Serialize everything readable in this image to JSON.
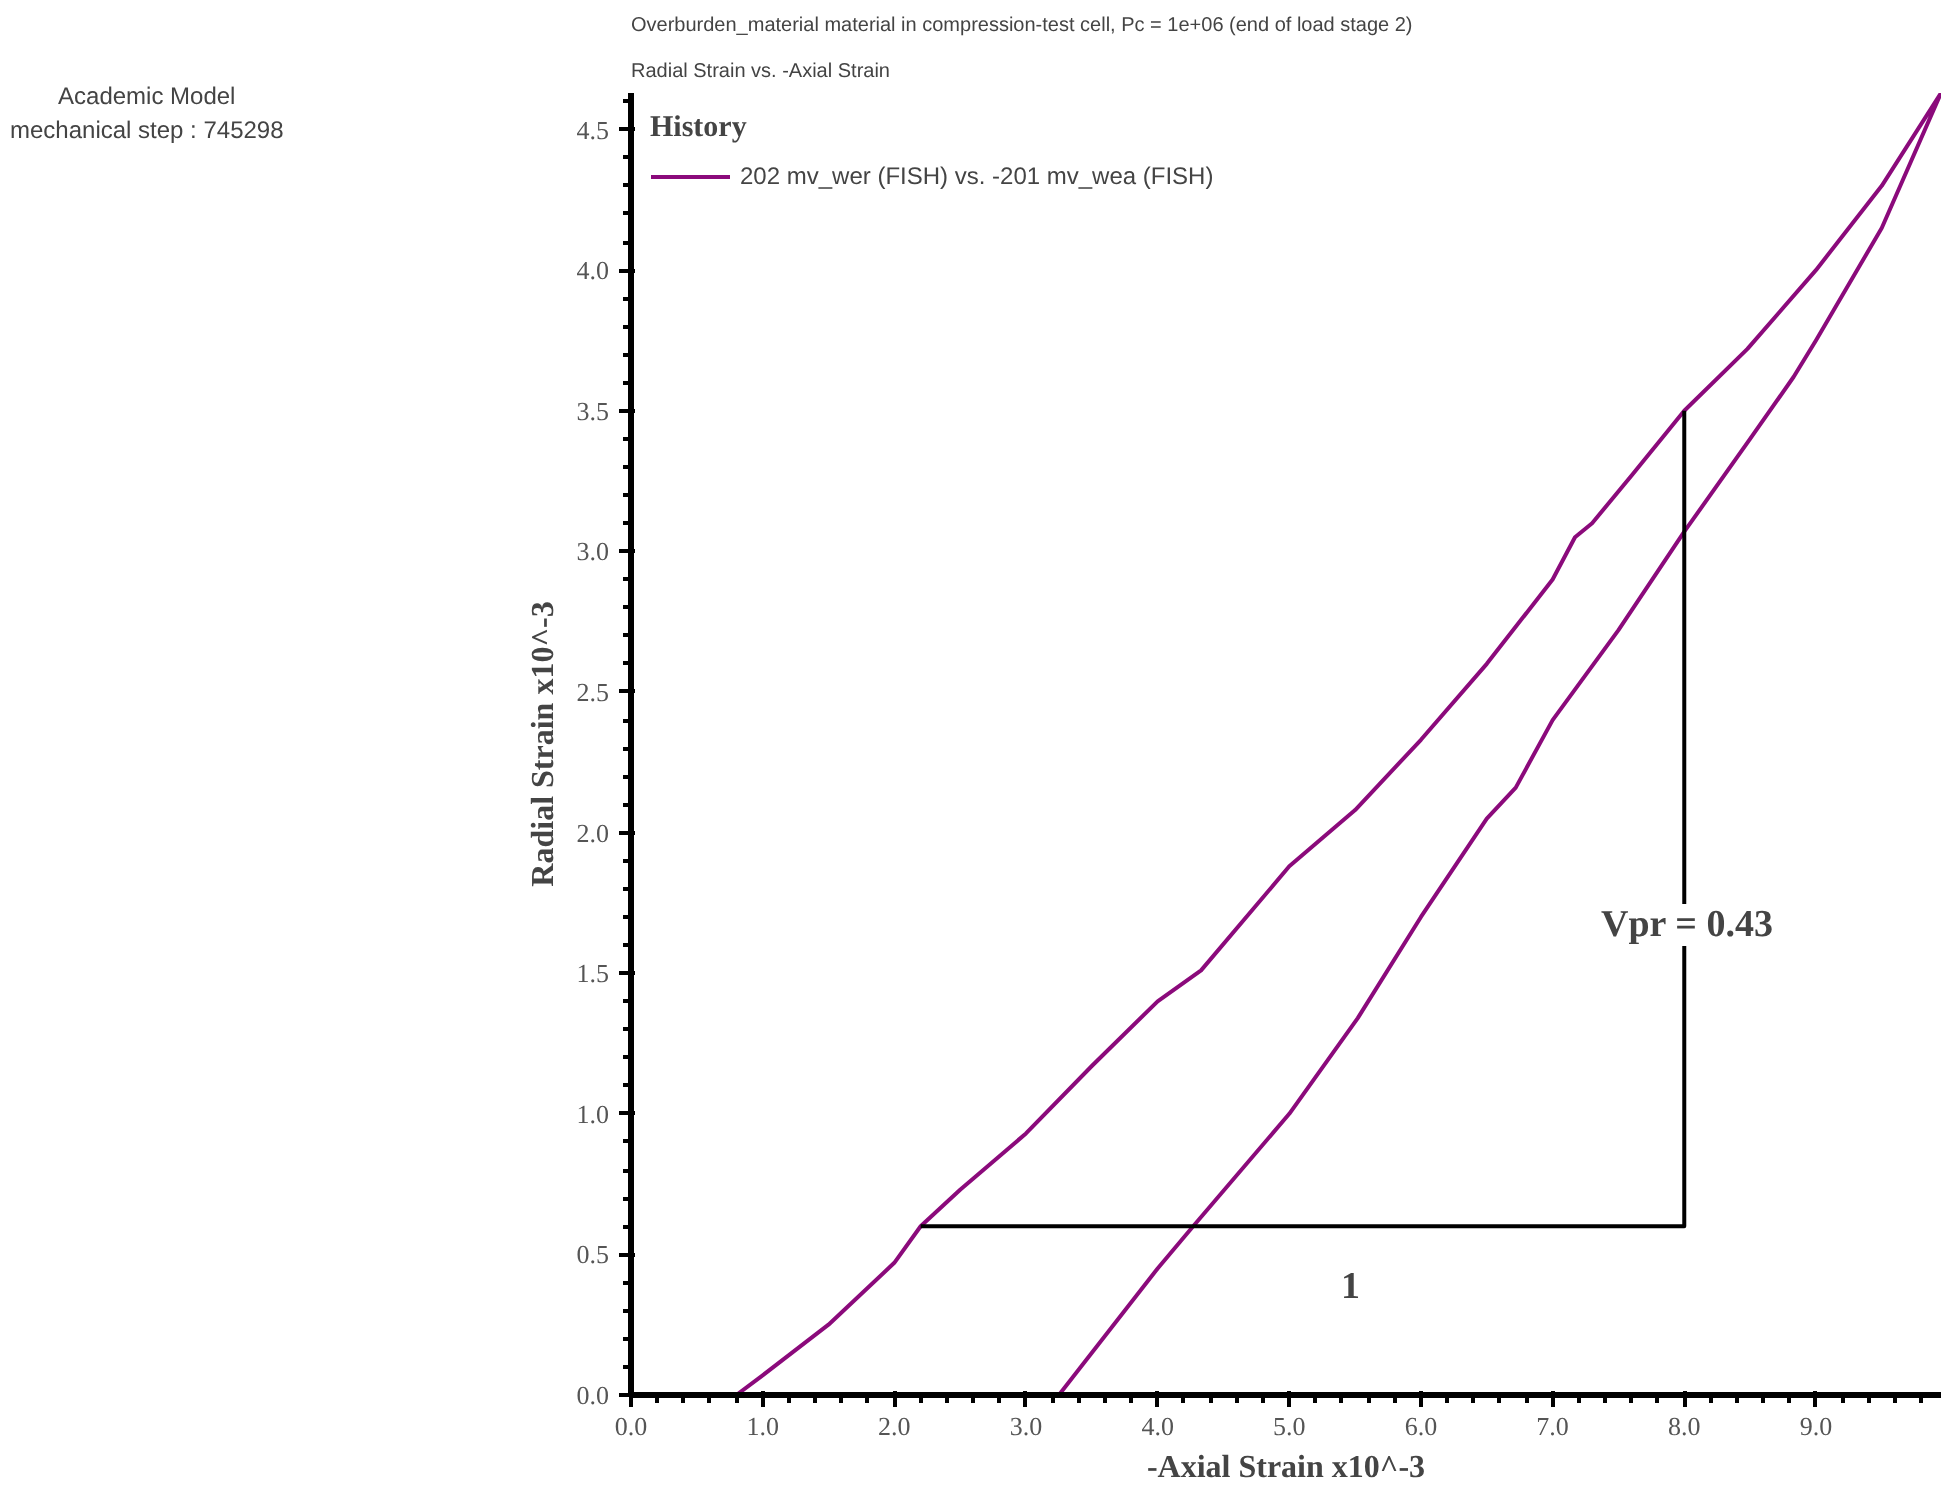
{
  "chart_data": {
    "type": "line",
    "title": "Overburden_material material in compression-test cell, Pc = 1e+06 (end of load stage 2)",
    "subtitle": "Radial Strain vs. -Axial Strain",
    "xlabel": "-Axial Strain x10^-3",
    "ylabel": "Radial Strain x10^-3",
    "legend_title": "History",
    "legend": "left",
    "xlim": [
      0,
      9.95
    ],
    "ylim": [
      0,
      4.63
    ],
    "xticks": [
      {
        "value": 0,
        "label": "0.0"
      },
      {
        "value": 1,
        "label": "1.0"
      },
      {
        "value": 2,
        "label": "2.0"
      },
      {
        "value": 3,
        "label": "3.0"
      },
      {
        "value": 4,
        "label": "4.0"
      },
      {
        "value": 5,
        "label": "5.0"
      },
      {
        "value": 6,
        "label": "6.0"
      },
      {
        "value": 7,
        "label": "7.0"
      },
      {
        "value": 8,
        "label": "8.0"
      },
      {
        "value": 9,
        "label": "9.0"
      }
    ],
    "yticks": [
      {
        "value": 0,
        "label": "0.0"
      },
      0.5,
      {
        "value": 1,
        "label": "1.0"
      },
      1.5,
      {
        "value": 2,
        "label": "2.0"
      },
      2.5,
      {
        "value": 3,
        "label": "3.0"
      },
      3.5,
      {
        "value": 4,
        "label": "4.0"
      },
      4.5
    ],
    "grid": false,
    "marker": "none",
    "line_style": "solid",
    "series": [
      {
        "name": "202 mv_wer (FISH) vs. -201 mv_wea (FISH)",
        "color": "#8b0a7b",
        "x": [
          0.8,
          1.0,
          1.5,
          2.0,
          2.2,
          2.5,
          3.0,
          3.5,
          4.0,
          4.33,
          5.0,
          5.5,
          6.0,
          6.5,
          7.0,
          7.17,
          7.3,
          7.6,
          8.0,
          8.48,
          9.0,
          9.5,
          9.95,
          9.5,
          9.0,
          8.83,
          8.5,
          8.0,
          7.5,
          7.0,
          6.72,
          6.5,
          6.0,
          5.52,
          5.0,
          4.27,
          4.0,
          3.25
        ],
        "values": [
          0,
          0.07,
          0.25,
          0.47,
          0.6,
          0.73,
          0.93,
          1.17,
          1.4,
          1.51,
          1.88,
          2.08,
          2.33,
          2.6,
          2.9,
          3.05,
          3.1,
          3.27,
          3.5,
          3.72,
          4.0,
          4.3,
          4.63,
          4.15,
          3.75,
          3.62,
          3.4,
          3.07,
          2.72,
          2.4,
          2.16,
          2.05,
          1.7,
          1.34,
          1.0,
          0.6,
          0.45,
          0
        ]
      },
      {
        "color": "#000000",
        "x": [
          2.2,
          8.0,
          8.0
        ],
        "values": [
          0.6,
          0.6,
          3.5
        ]
      }
    ],
    "annotations": [
      "1",
      "Vpr = 0.43",
      "Academic Model",
      "mechanical step : 745298"
    ]
  }
}
